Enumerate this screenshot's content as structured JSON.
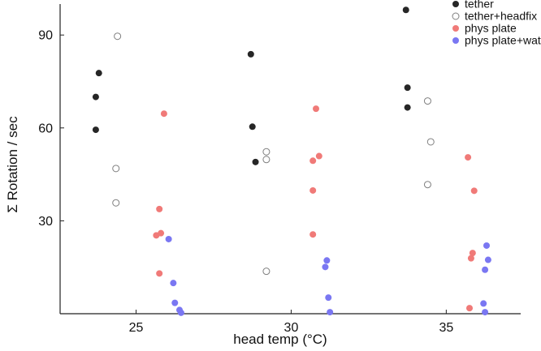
{
  "chart_data": {
    "type": "scatter",
    "xlabel": "head temp (°C)",
    "ylabel": "Σ Rotation / sec",
    "xlim": [
      22.55,
      37.4
    ],
    "ylim": [
      0,
      100
    ],
    "xticks": [
      25,
      30,
      35
    ],
    "xtick_labels": [
      "25",
      "30",
      "35"
    ],
    "yticks": [
      30,
      60,
      90
    ],
    "ytick_labels": [
      "30",
      "60",
      "90"
    ],
    "grid": false,
    "legend_position": "top-right",
    "series": [
      {
        "name": "tether",
        "color": "#262626",
        "filled": true,
        "points": [
          [
            23.7,
            70.0
          ],
          [
            23.8,
            77.7
          ],
          [
            23.7,
            59.4
          ],
          [
            28.7,
            83.8
          ],
          [
            28.75,
            60.4
          ],
          [
            28.85,
            49.0
          ],
          [
            33.7,
            98.1
          ],
          [
            33.75,
            73.0
          ],
          [
            33.75,
            66.6
          ]
        ]
      },
      {
        "name": "tether+headfix",
        "color": "#7f7f7f",
        "filled": false,
        "points": [
          [
            24.4,
            89.6
          ],
          [
            24.35,
            46.9
          ],
          [
            24.35,
            35.8
          ],
          [
            29.2,
            52.3
          ],
          [
            29.2,
            49.8
          ],
          [
            29.2,
            13.7
          ],
          [
            34.4,
            68.7
          ],
          [
            34.5,
            55.5
          ],
          [
            34.4,
            41.7
          ]
        ]
      },
      {
        "name": "phys plate",
        "color": "#f07a78",
        "filled": true,
        "points": [
          [
            25.9,
            64.6
          ],
          [
            25.75,
            33.8
          ],
          [
            25.8,
            26.0
          ],
          [
            25.65,
            25.3
          ],
          [
            25.75,
            13.0
          ],
          [
            30.8,
            66.2
          ],
          [
            30.9,
            50.9
          ],
          [
            30.7,
            49.4
          ],
          [
            30.7,
            39.8
          ],
          [
            30.7,
            25.6
          ],
          [
            35.7,
            50.5
          ],
          [
            35.9,
            39.7
          ],
          [
            35.85,
            19.6
          ],
          [
            35.8,
            17.9
          ],
          [
            35.75,
            1.8
          ]
        ]
      },
      {
        "name": "phys plate+water",
        "color": "#7a77f2",
        "filled": true,
        "points": [
          [
            26.05,
            24.1
          ],
          [
            26.2,
            9.9
          ],
          [
            26.25,
            3.5
          ],
          [
            26.4,
            1.2
          ],
          [
            26.45,
            0.3
          ],
          [
            31.15,
            17.2
          ],
          [
            31.1,
            15.1
          ],
          [
            31.2,
            5.2
          ],
          [
            31.25,
            0.5
          ],
          [
            36.3,
            22.0
          ],
          [
            36.35,
            17.4
          ],
          [
            36.25,
            14.2
          ],
          [
            36.2,
            3.3
          ],
          [
            36.25,
            0.5
          ]
        ]
      }
    ]
  }
}
